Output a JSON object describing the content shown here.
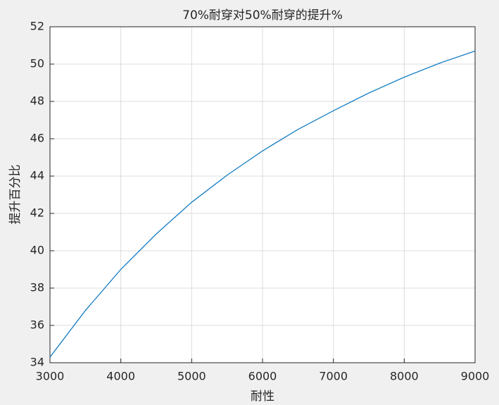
{
  "chart_data": {
    "type": "line",
    "title": "70%耐穿对50%耐穿的提升%",
    "x_label": "耐性",
    "y_label": "提升百分比",
    "x": [
      3000,
      3500,
      4000,
      4500,
      5000,
      5500,
      6000,
      6500,
      7000,
      7500,
      8000,
      8500,
      9000
    ],
    "series": [
      {
        "color": "#0072bd",
        "values": [
          34.3,
          36.8,
          39.0,
          40.9,
          42.6,
          44.05,
          45.35,
          46.5,
          47.5,
          48.45,
          49.3,
          50.05,
          50.7
        ]
      }
    ],
    "xlim": [
      3000,
      9000
    ],
    "xticks": [
      3000,
      4000,
      5000,
      6000,
      7000,
      8000,
      9000
    ],
    "ylim": [
      34,
      52
    ],
    "yticks": [
      34,
      36,
      38,
      40,
      42,
      44,
      46,
      48,
      50,
      52
    ],
    "grid": true
  }
}
